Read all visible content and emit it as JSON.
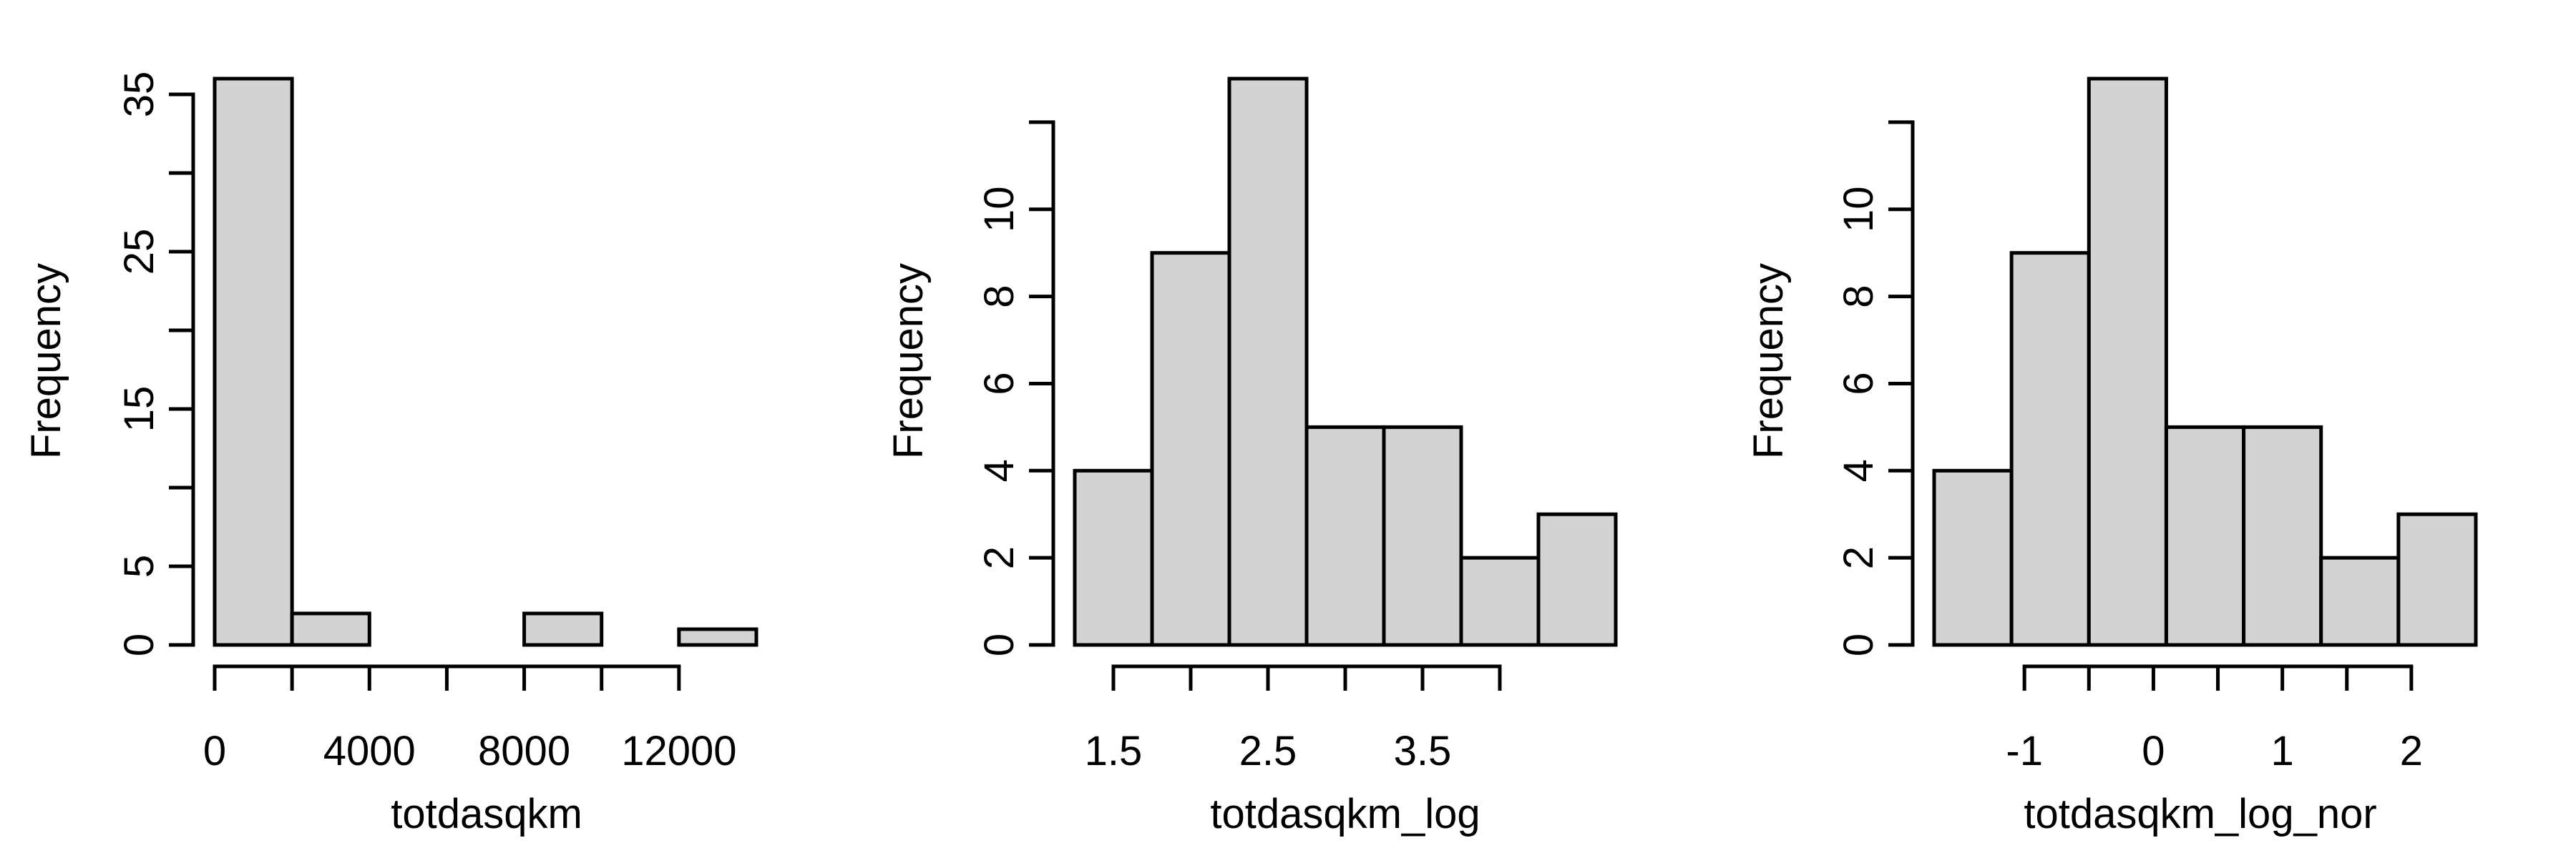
{
  "chart_data": [
    {
      "type": "bar",
      "histogram": true,
      "xlabel": "totdasqkm",
      "ylabel": "Frequency",
      "bin_edges": [
        0,
        2000,
        4000,
        6000,
        8000,
        10000,
        12000,
        14000
      ],
      "values": [
        36,
        2,
        0,
        0,
        2,
        0,
        1
      ],
      "xlim": [
        0,
        14000
      ],
      "ylim": [
        0,
        36
      ],
      "x_ticks": [
        0,
        2000,
        4000,
        6000,
        8000,
        10000,
        12000
      ],
      "x_tick_labels": [
        "0",
        "",
        "4000",
        "",
        "8000",
        "",
        "12000"
      ],
      "y_ticks": [
        0,
        5,
        10,
        15,
        20,
        25,
        30,
        35
      ],
      "y_tick_labels": [
        "0",
        "5",
        "",
        "15",
        "",
        "25",
        "",
        "35"
      ]
    },
    {
      "type": "bar",
      "histogram": true,
      "xlabel": "totdasqkm_log",
      "ylabel": "Frequency",
      "bin_edges": [
        1.25,
        1.75,
        2.25,
        2.75,
        3.25,
        3.75,
        4.25,
        4.75
      ],
      "values": [
        4,
        9,
        13,
        5,
        5,
        2,
        3
      ],
      "xlim": [
        1.25,
        4.75
      ],
      "ylim": [
        0,
        13
      ],
      "x_ticks": [
        1.5,
        2.0,
        2.5,
        3.0,
        3.5,
        4.0
      ],
      "x_tick_labels": [
        "1.5",
        "",
        "2.5",
        "",
        "3.5",
        ""
      ],
      "y_ticks": [
        0,
        2,
        4,
        6,
        8,
        10,
        12
      ],
      "y_tick_labels": [
        "0",
        "2",
        "4",
        "6",
        "8",
        "10",
        ""
      ]
    },
    {
      "type": "bar",
      "histogram": true,
      "xlabel": "totdasqkm_log_nor",
      "ylabel": "Frequency",
      "bin_edges": [
        -1.7,
        -1.1,
        -0.5,
        0.1,
        0.7,
        1.3,
        1.9,
        2.5
      ],
      "values": [
        4,
        9,
        13,
        5,
        5,
        2,
        3
      ],
      "xlim": [
        -1.7,
        2.5
      ],
      "ylim": [
        0,
        13
      ],
      "x_ticks": [
        -1,
        -0.5,
        0,
        0.5,
        1,
        1.5,
        2
      ],
      "x_tick_labels": [
        "-1",
        "",
        "0",
        "",
        "1",
        "",
        "2"
      ],
      "y_ticks": [
        0,
        2,
        4,
        6,
        8,
        10,
        12
      ],
      "y_tick_labels": [
        "0",
        "2",
        "4",
        "6",
        "8",
        "10",
        ""
      ]
    }
  ],
  "colors": {
    "bar_fill": "#d3d3d3",
    "stroke": "#000000",
    "background": "#ffffff"
  }
}
